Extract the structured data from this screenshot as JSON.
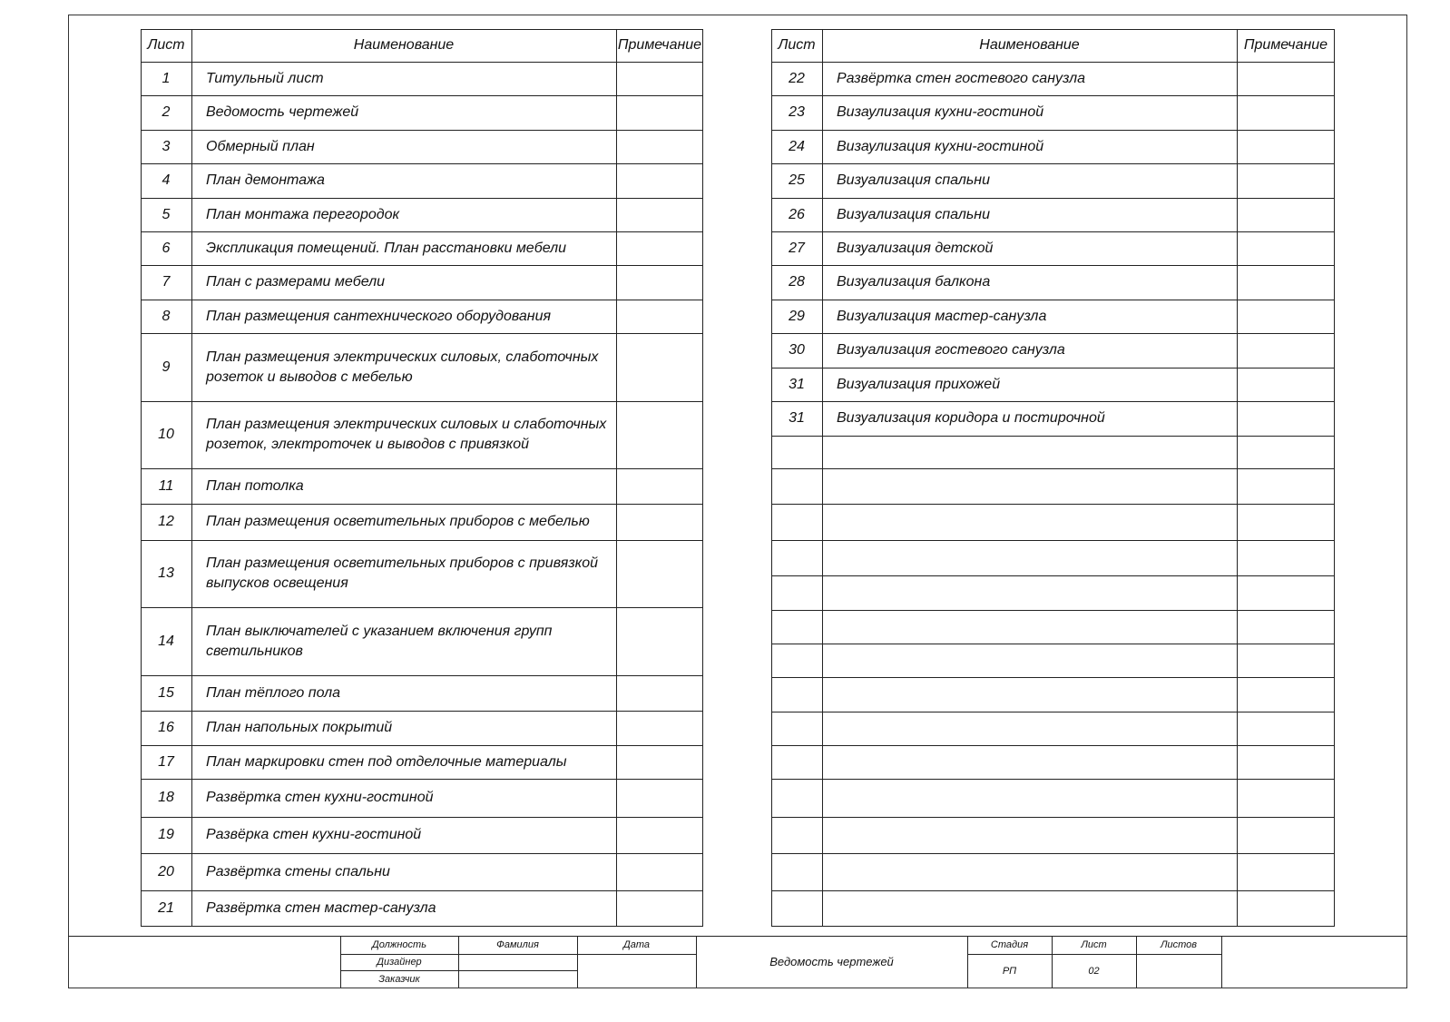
{
  "left_table": {
    "headers": {
      "sheet": "Лист",
      "name": "Наименование",
      "note": "Примечание"
    },
    "rows": [
      {
        "num": "1",
        "name": "Титульный лист",
        "note": ""
      },
      {
        "num": "2",
        "name": "Ведомость чертежей",
        "note": ""
      },
      {
        "num": "3",
        "name": "Обмерный план",
        "note": ""
      },
      {
        "num": "4",
        "name": "План демонтажа",
        "note": ""
      },
      {
        "num": "5",
        "name": "План монтажа перегородок",
        "note": ""
      },
      {
        "num": "6",
        "name": "Экспликация помещений. План расстановки мебели",
        "note": ""
      },
      {
        "num": "7",
        "name": "План с размерами мебели",
        "note": ""
      },
      {
        "num": "8",
        "name": "План размещения сантехнического оборудования",
        "note": ""
      },
      {
        "num": "9",
        "name": "План размещения электрических силовых, слаботочных розеток и выводов с мебелью",
        "note": ""
      },
      {
        "num": "10",
        "name": "План размещения электрических силовых и слаботочных розеток, электроточек и выводов с привязкой",
        "note": ""
      },
      {
        "num": "11",
        "name": "План потолка",
        "note": ""
      },
      {
        "num": "12",
        "name": "План размещения осветительных приборов с мебелью",
        "note": ""
      },
      {
        "num": "13",
        "name": "План размещения осветительных приборов с привязкой выпусков освещения",
        "note": ""
      },
      {
        "num": "14",
        "name": "План выключателей с указанием включения групп светильников",
        "note": ""
      },
      {
        "num": "15",
        "name": "План тёплого пола",
        "note": ""
      },
      {
        "num": "16",
        "name": "План напольных покрытий",
        "note": ""
      },
      {
        "num": "17",
        "name": "План маркировки стен под отделочные материалы",
        "note": ""
      },
      {
        "num": "18",
        "name": "Развёртка стен кухни-гостиной",
        "note": ""
      },
      {
        "num": "19",
        "name": "Развёрка стен кухни-гостиной",
        "note": ""
      },
      {
        "num": "20",
        "name": "Развёртка стены спальни",
        "note": ""
      },
      {
        "num": "21",
        "name": "Развёртка стен мастер-санузла",
        "note": ""
      }
    ]
  },
  "right_table": {
    "headers": {
      "sheet": "Лист",
      "name": "Наименование",
      "note": "Примечание"
    },
    "rows": [
      {
        "num": "22",
        "name": "Развёртка стен гостевого санузла",
        "note": ""
      },
      {
        "num": "23",
        "name": "Визаулизация кухни-гостиной",
        "note": ""
      },
      {
        "num": "24",
        "name": "Визаулизация кухни-гостиной",
        "note": ""
      },
      {
        "num": "25",
        "name": "Визуализация спальни",
        "note": ""
      },
      {
        "num": "26",
        "name": "Визуализация спальни",
        "note": ""
      },
      {
        "num": "27",
        "name": "Визуализация детской",
        "note": ""
      },
      {
        "num": "28",
        "name": "Визуализация балкона",
        "note": ""
      },
      {
        "num": "29",
        "name": "Визуализация мастер-санузла",
        "note": ""
      },
      {
        "num": "30",
        "name": "Визуализация гостевого санузла",
        "note": ""
      },
      {
        "num": "31",
        "name": "Визуализация прихожей",
        "note": ""
      },
      {
        "num": "31",
        "name": "Визуализация коридора и постирочной",
        "note": ""
      },
      {
        "num": "",
        "name": "",
        "note": ""
      },
      {
        "num": "",
        "name": "",
        "note": ""
      },
      {
        "num": "",
        "name": "",
        "note": ""
      },
      {
        "num": "",
        "name": "",
        "note": ""
      },
      {
        "num": "",
        "name": "",
        "note": ""
      },
      {
        "num": "",
        "name": "",
        "note": ""
      },
      {
        "num": "",
        "name": "",
        "note": ""
      },
      {
        "num": "",
        "name": "",
        "note": ""
      },
      {
        "num": "",
        "name": "",
        "note": ""
      },
      {
        "num": "",
        "name": "",
        "note": ""
      },
      {
        "num": "",
        "name": "",
        "note": ""
      },
      {
        "num": "",
        "name": "",
        "note": ""
      },
      {
        "num": "",
        "name": "",
        "note": ""
      },
      {
        "num": "",
        "name": "",
        "note": ""
      }
    ]
  },
  "title_block": {
    "position_header": "Должность",
    "surname_header": "Фамилия",
    "date_header": "Дата",
    "role_designer": "Дизайнер",
    "role_client": "Заказчик",
    "sheet_title": "Ведомость чертежей",
    "stage_header": "Стадия",
    "sheet_header": "Лист",
    "sheets_header": "Листов",
    "stage_value": "РП",
    "sheet_value": "02",
    "sheets_value": ""
  }
}
